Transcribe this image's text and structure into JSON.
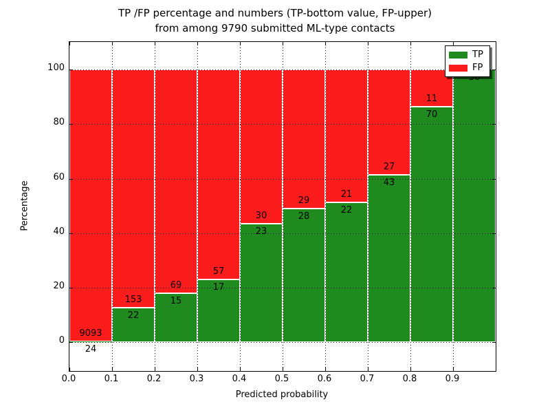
{
  "figure": {
    "title_line1": "TP /FP percentage and numbers (TP-bottom value, FP-upper)",
    "title_line2": "from among 9790 submitted ML-type contacts"
  },
  "chart_data": {
    "type": "bar",
    "variant": "stacked-100-percent",
    "title": "TP /FP percentage and numbers (TP-bottom value, FP-upper) from among 9790 submitted ML-type contacts",
    "xlabel": "Predicted probability",
    "ylabel": "Percentage",
    "x_tick_labels": [
      "0.0",
      "0.1",
      "0.2",
      "0.3",
      "0.4",
      "0.5",
      "0.6",
      "0.7",
      "0.8",
      "0.9"
    ],
    "y_tick_values": [
      0,
      20,
      40,
      60,
      80,
      100
    ],
    "y_tick_labels": [
      "0",
      "20",
      "40",
      "60",
      "80",
      "100"
    ],
    "xlim": [
      0.0,
      1.0
    ],
    "ylim": [
      -10.6,
      110.2
    ],
    "grid": "dotted",
    "total_contacts": 9790,
    "colors": {
      "tp": "#1f8b1f",
      "fp": "#fc1c1c",
      "bar_edge": "#ffffff",
      "grid": "#000000"
    },
    "legend": {
      "position": "upper-right",
      "entries": [
        {
          "label": "TP",
          "color_key": "tp"
        },
        {
          "label": "FP",
          "color_key": "fp"
        }
      ]
    },
    "label_convention": "TP count shown below segment boundary, FP count shown above boundary",
    "bins": [
      {
        "x0": 0.0,
        "x1": 0.1,
        "tp": 24,
        "fp": 9093
      },
      {
        "x0": 0.1,
        "x1": 0.2,
        "tp": 22,
        "fp": 153
      },
      {
        "x0": 0.2,
        "x1": 0.3,
        "tp": 15,
        "fp": 69
      },
      {
        "x0": 0.3,
        "x1": 0.4,
        "tp": 17,
        "fp": 57
      },
      {
        "x0": 0.4,
        "x1": 0.5,
        "tp": 23,
        "fp": 30
      },
      {
        "x0": 0.5,
        "x1": 0.6,
        "tp": 28,
        "fp": 29
      },
      {
        "x0": 0.6,
        "x1": 0.7,
        "tp": 22,
        "fp": 21
      },
      {
        "x0": 0.7,
        "x1": 0.8,
        "tp": 43,
        "fp": 27
      },
      {
        "x0": 0.8,
        "x1": 0.9,
        "tp": 70,
        "fp": 11
      },
      {
        "x0": 0.9,
        "x1": 1.0,
        "tp": 36,
        "fp": 0
      }
    ]
  }
}
